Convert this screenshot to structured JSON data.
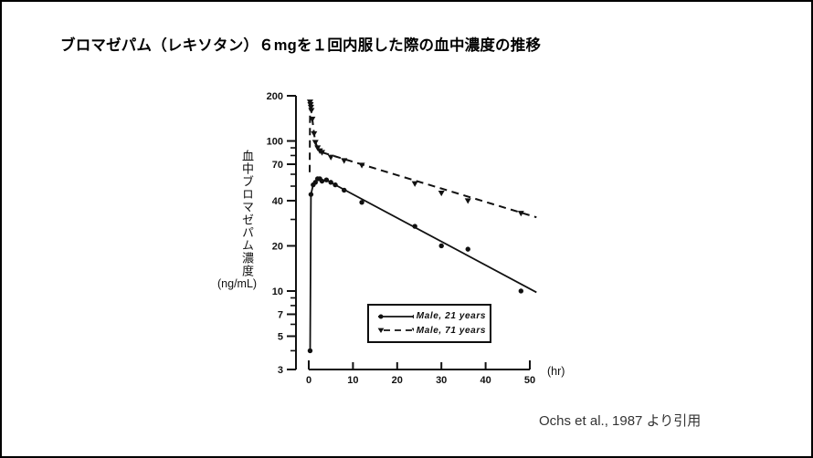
{
  "page": {
    "citation": "Ochs et al., 1987 より引用"
  },
  "chart_data": {
    "type": "line",
    "title": "ブロマゼパム（レキソタン）６mgを１回内服した際の血中濃度の推移",
    "xlabel": "(hr)",
    "ylabel": "血中ブロマゼパム濃度",
    "ylabel_unit": "(ng/mL)",
    "x_axis": {
      "min": 0,
      "max": 50,
      "ticks": [
        0,
        10,
        20,
        30,
        40,
        50
      ]
    },
    "y_axis": {
      "scale": "log",
      "min": 3,
      "max": 200,
      "ticks_labeled": [
        200,
        100,
        70,
        40,
        20,
        10,
        7,
        5,
        3
      ],
      "ticks_minor": [
        90,
        80,
        60,
        50,
        30,
        9,
        8,
        6,
        4
      ]
    },
    "grid": false,
    "legend": {
      "position": "inside-bottom",
      "border": true
    },
    "line_color": "#111111",
    "series": [
      {
        "name": "Male, 21 years",
        "marker": "circle",
        "line_style": "solid",
        "points": [
          [
            0.3,
            4
          ],
          [
            0.5,
            44
          ],
          [
            1,
            51
          ],
          [
            1.5,
            53
          ],
          [
            2,
            56
          ],
          [
            2.5,
            56
          ],
          [
            3,
            54
          ],
          [
            4,
            55
          ],
          [
            5,
            53
          ],
          [
            6,
            51
          ],
          [
            8,
            47
          ],
          [
            12,
            39
          ],
          [
            24,
            27
          ],
          [
            30,
            20
          ],
          [
            36,
            19
          ],
          [
            48,
            10
          ]
        ],
        "trend_line": [
          [
            0.3,
            4
          ],
          [
            0.5,
            44
          ],
          [
            1,
            51
          ],
          [
            1.5,
            53
          ],
          [
            2,
            56
          ],
          [
            2.5,
            56
          ],
          [
            3,
            54
          ],
          [
            4,
            55
          ],
          [
            5,
            53
          ],
          [
            6,
            51
          ],
          [
            51.5,
            9.8
          ]
        ]
      },
      {
        "name": "Male, 71 years",
        "marker": "triangle-down",
        "line_style": "dashed",
        "points": [
          [
            0.3,
            182
          ],
          [
            0.4,
            175
          ],
          [
            0.5,
            168
          ],
          [
            0.6,
            160
          ],
          [
            0.8,
            140
          ],
          [
            1.2,
            112
          ],
          [
            1.5,
            98
          ],
          [
            2,
            90
          ],
          [
            2.5,
            86
          ],
          [
            3,
            84
          ],
          [
            5,
            78
          ],
          [
            8,
            74
          ],
          [
            12,
            69
          ],
          [
            24,
            52
          ],
          [
            30,
            45
          ],
          [
            36,
            40
          ],
          [
            48,
            33
          ]
        ],
        "trend_line": [
          [
            0.2,
            62
          ],
          [
            0.3,
            182
          ],
          [
            0.5,
            168
          ],
          [
            0.8,
            140
          ],
          [
            1.2,
            112
          ],
          [
            1.5,
            98
          ],
          [
            2,
            90
          ],
          [
            2.5,
            86
          ],
          [
            3,
            84
          ],
          [
            51.5,
            31
          ]
        ]
      }
    ]
  }
}
